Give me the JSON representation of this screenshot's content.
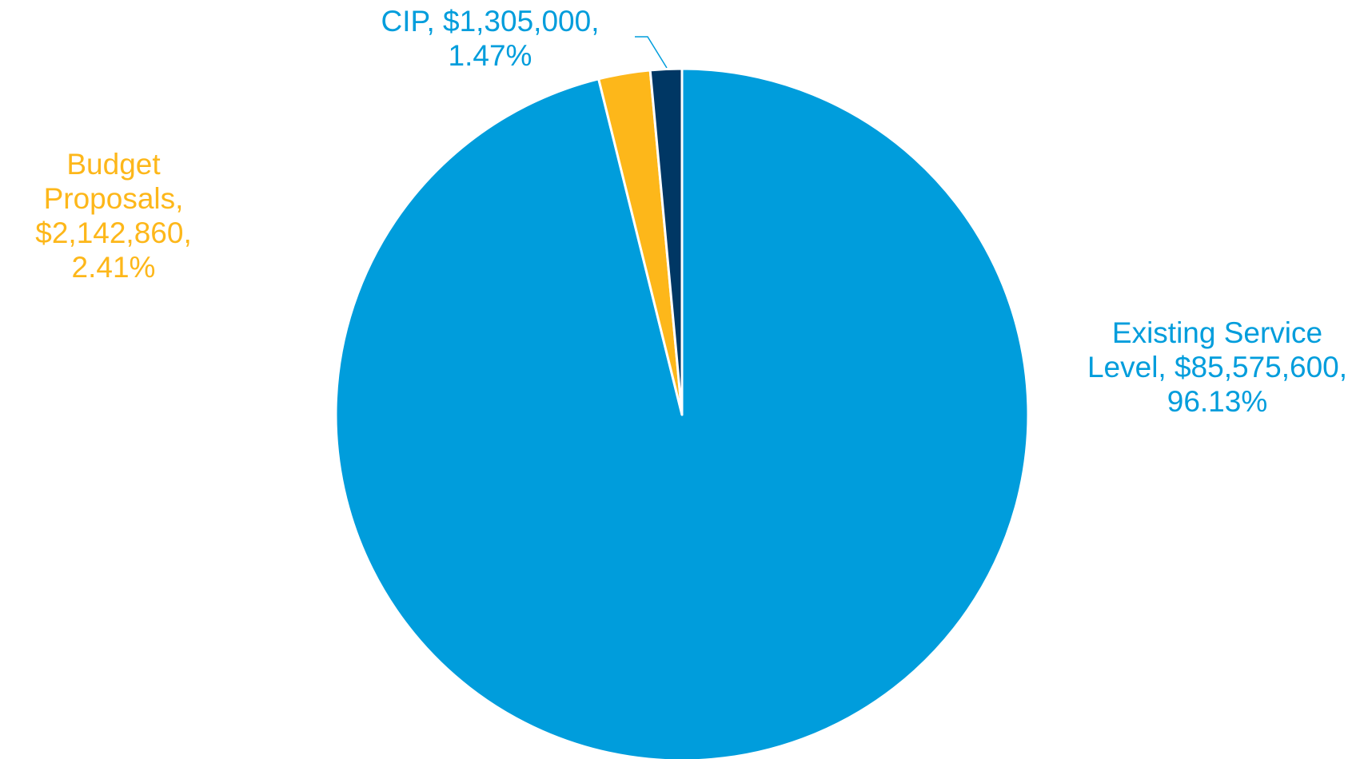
{
  "chart_data": {
    "type": "pie",
    "categories": [
      "Existing Service Level",
      "Budget Proposals",
      "CIP"
    ],
    "values": [
      85575600,
      2142860,
      1305000
    ],
    "value_labels": [
      "$85,575,600",
      "$2,142,860",
      "$1,305,000"
    ],
    "percentages": [
      {
        "value": 96.13,
        "label": "96.13%"
      },
      {
        "value": 2.41,
        "label": "2.41%"
      },
      {
        "value": 1.47,
        "label": "1.47%"
      }
    ],
    "label_separator": ",",
    "colors": [
      "#009ddc",
      "#fdb71a",
      "#003764"
    ],
    "label_colors": [
      "#009ddc",
      "#fdb71a",
      "#009ddc"
    ]
  }
}
